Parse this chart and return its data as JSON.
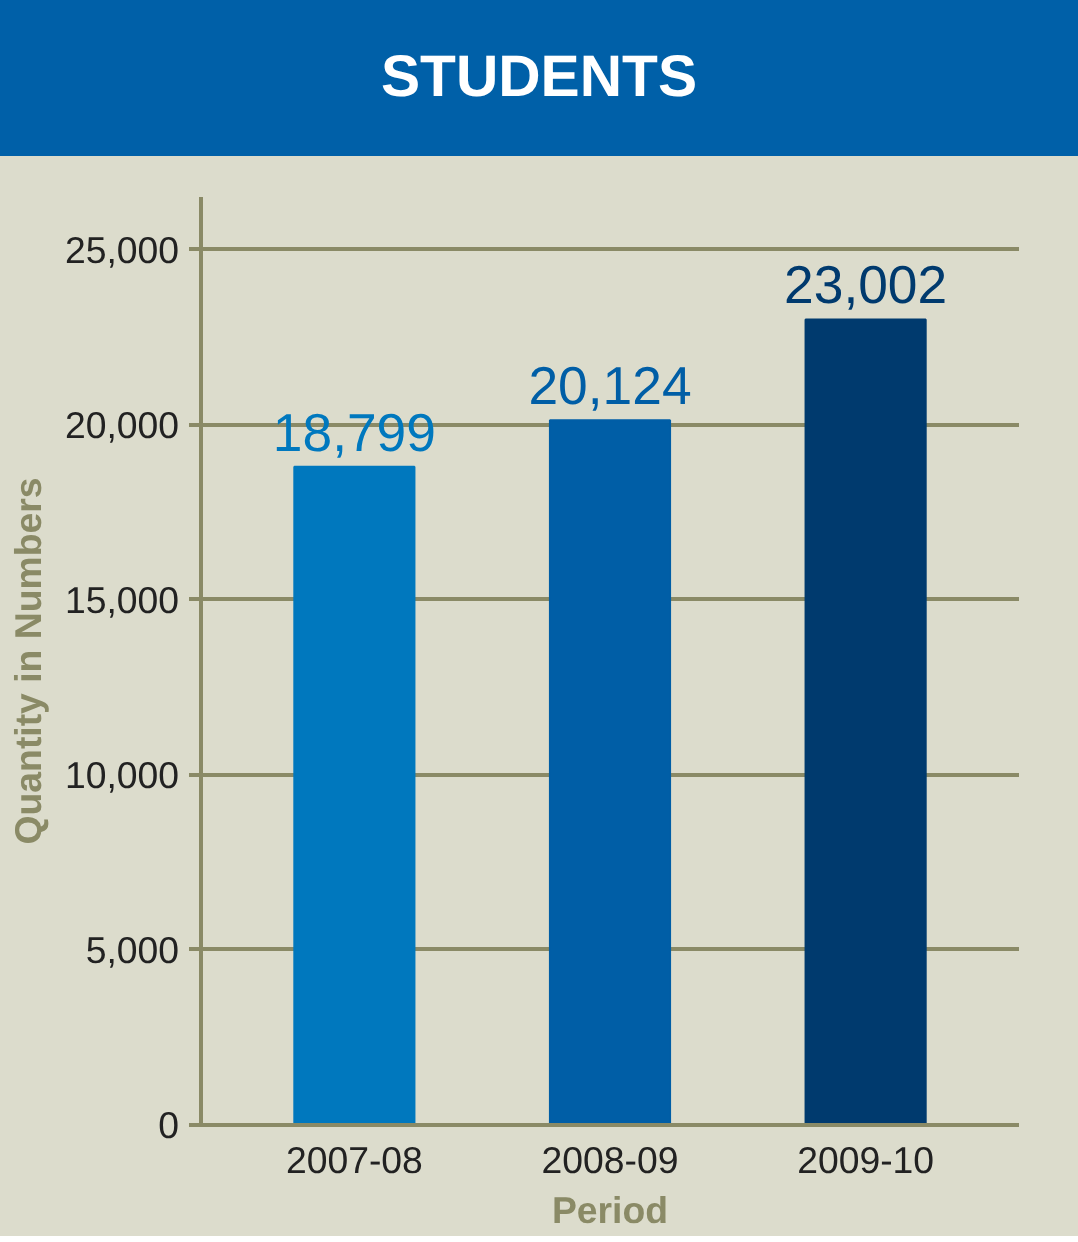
{
  "chart_data": {
    "type": "bar",
    "title": "STUDENTS",
    "xlabel": "Period",
    "ylabel": "Quantity in Numbers",
    "categories": [
      "2007-08",
      "2008-09",
      "2009-10"
    ],
    "values": [
      18799,
      20124,
      23002
    ],
    "value_labels": [
      "18,799",
      "20,124",
      "23,002"
    ],
    "colors": [
      "#0078be",
      "#005ea6",
      "#003a6e"
    ],
    "ylim": [
      0,
      26500
    ],
    "yticks": [
      {
        "value": 0,
        "label": "0"
      },
      {
        "value": 5000,
        "label": "5,000"
      },
      {
        "value": 10000,
        "label": "10,000"
      },
      {
        "value": 15000,
        "label": "15,000"
      },
      {
        "value": 20000,
        "label": "20,000"
      },
      {
        "value": 25000,
        "label": "25,000"
      }
    ],
    "grid": "y"
  }
}
